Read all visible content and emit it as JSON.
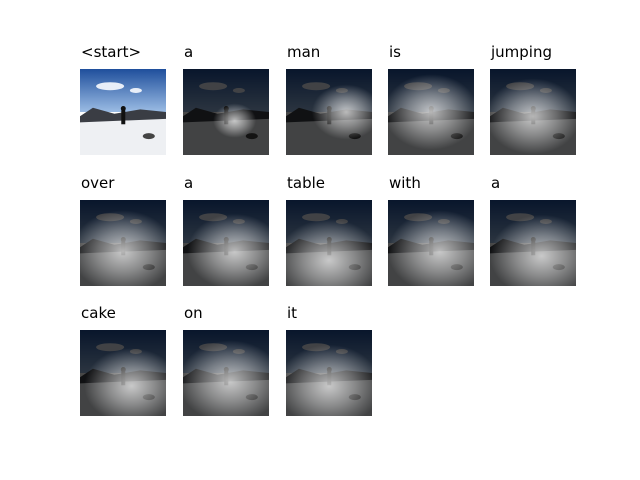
{
  "panels": [
    {
      "word": "<start>"
    },
    {
      "word": "a"
    },
    {
      "word": "man"
    },
    {
      "word": "is"
    },
    {
      "word": "jumping"
    },
    {
      "word": "over"
    },
    {
      "word": "a"
    },
    {
      "word": "table"
    },
    {
      "word": "with"
    },
    {
      "word": "a"
    },
    {
      "word": "cake"
    },
    {
      "word": "on"
    },
    {
      "word": "it"
    }
  ]
}
